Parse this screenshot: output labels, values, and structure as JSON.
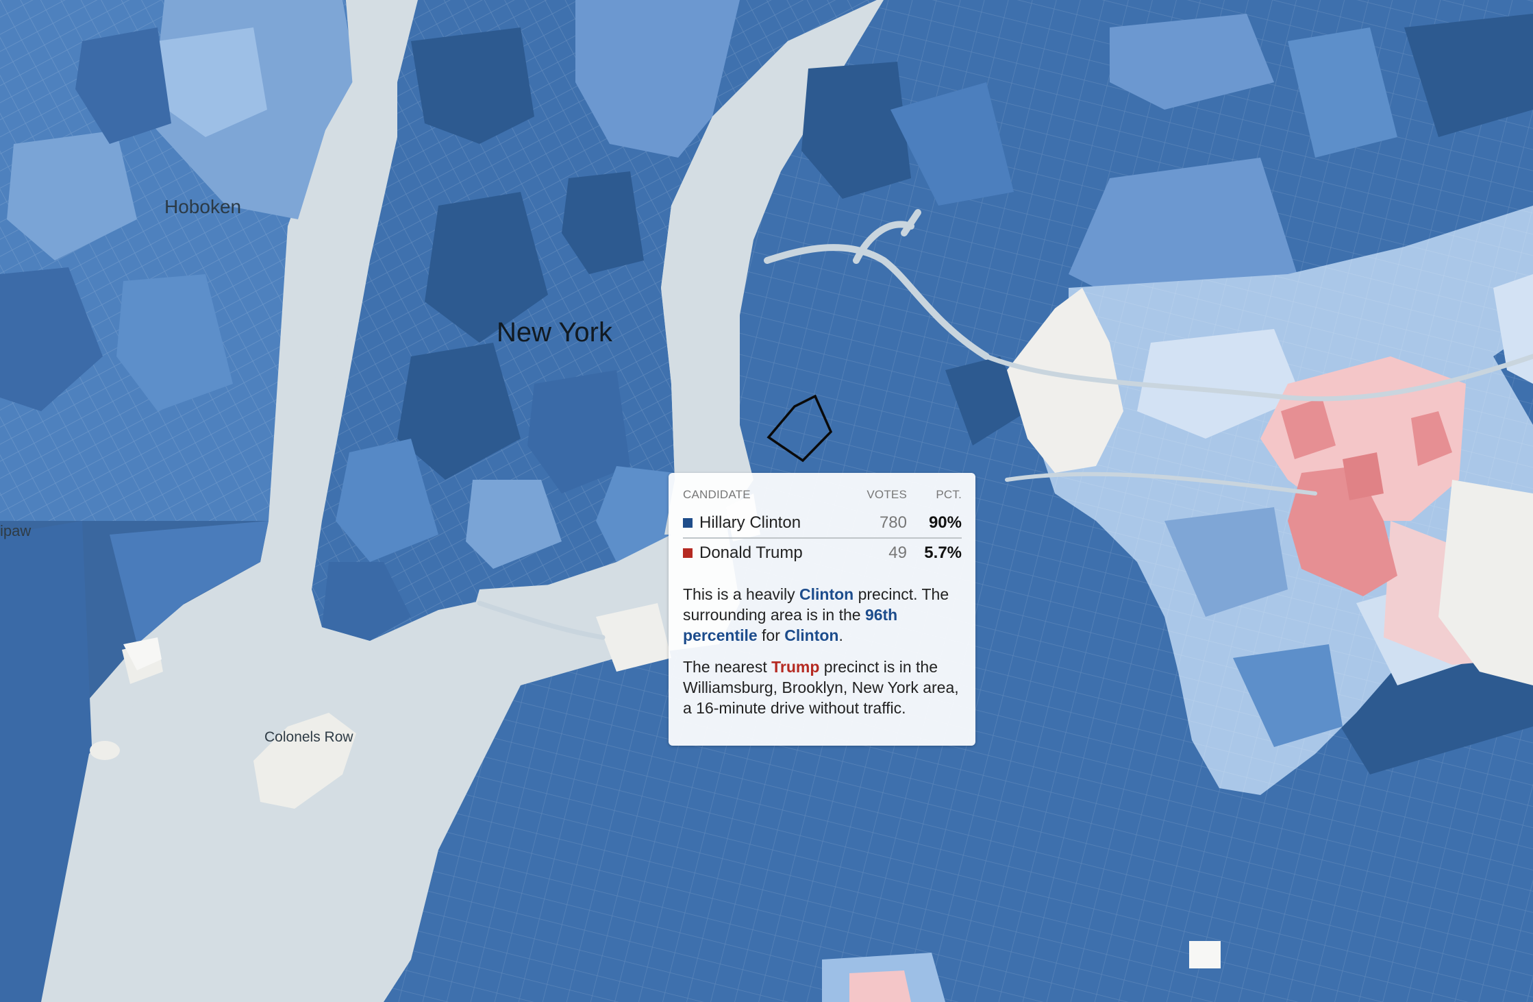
{
  "map": {
    "place_labels": {
      "hoboken": "Hoboken",
      "new_york": "New York",
      "colonels_row": "Colonels Row",
      "weehawken_partial": "ipaw"
    },
    "colors": {
      "water": "#d4dde3",
      "clinton_darkest": "#2a5385",
      "clinton_dark": "#386aa3",
      "clinton_mid": "#4f82bf",
      "clinton_light": "#8db2dc",
      "clinton_lightest": "#c8daf0",
      "trump_light": "#f4c6c8",
      "trump_mid": "#e68f93",
      "no_data": "#f0efec"
    }
  },
  "tooltip": {
    "header": {
      "candidate": "CANDIDATE",
      "votes": "VOTES",
      "pct": "PCT."
    },
    "rows": [
      {
        "swatch": "#1f4d8a",
        "name": "Hillary Clinton",
        "votes": "780",
        "pct": "90%"
      },
      {
        "swatch": "#b52a22",
        "name": "Donald Trump",
        "votes": "49",
        "pct": "5.7%"
      }
    ],
    "p1": {
      "a": "This is a heavily ",
      "b": "Clinton",
      "c": " precinct. The surrounding area is in the ",
      "d": "96th percentile",
      "e": " for ",
      "f": "Clinton",
      "g": "."
    },
    "p2": {
      "a": "The nearest ",
      "b": "Trump",
      "c": " precinct is in the Williamsburg, Brooklyn, New York area, a 16-minute drive without traffic."
    }
  }
}
